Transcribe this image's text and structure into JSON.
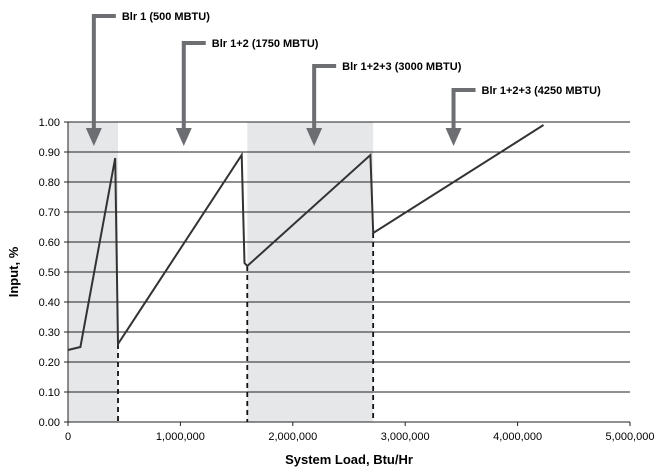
{
  "chart_data": {
    "type": "line",
    "title": "",
    "xlabel": "System Load, Btu/Hr",
    "ylabel": "Input, %",
    "xlim": [
      0,
      5000000
    ],
    "ylim": [
      0,
      1.0
    ],
    "x_ticks": [
      0,
      1000000,
      2000000,
      3000000,
      4000000,
      5000000
    ],
    "x_tick_labels": [
      "0",
      "1,000,000",
      "2,000,000",
      "3,000,000",
      "4,000,000",
      "5,000,000"
    ],
    "y_ticks": [
      0,
      0.1,
      0.2,
      0.3,
      0.4,
      0.5,
      0.6,
      0.7,
      0.8,
      0.9,
      1.0
    ],
    "y_tick_labels": [
      "0.00",
      "0.10",
      "0.20",
      "0.30",
      "0.40",
      "0.50",
      "0.60",
      "0.70",
      "0.80",
      "0.90",
      "1.00"
    ],
    "grid": "horizontal",
    "series": [
      {
        "color": "#333333",
        "x": [
          0,
          110000,
          420000,
          445000,
          1545000,
          1570000,
          1595000,
          2690000,
          2715000,
          4230000
        ],
        "y": [
          0.24,
          0.25,
          0.88,
          0.26,
          0.89,
          0.53,
          0.52,
          0.89,
          0.63,
          0.99
        ]
      }
    ],
    "shaded_regions": [
      {
        "x0": 0,
        "x1": 445000,
        "color": "#e6e7e9"
      },
      {
        "x0": 1595000,
        "x1": 2715000,
        "color": "#e6e7e9"
      }
    ],
    "dashed_verticals": [
      {
        "x": 445000,
        "y_top": 0.26
      },
      {
        "x": 1595000,
        "y_top": 0.52
      },
      {
        "x": 2715000,
        "y_top": 0.63
      }
    ],
    "annotations": [
      {
        "text": "Blr 1 (500 MBTU)",
        "arrow_x": 230000
      },
      {
        "text": "Blr 1+2 (1750 MBTU)",
        "arrow_x": 1030000
      },
      {
        "text": "Blr 1+2+3 (3000 MBTU)",
        "arrow_x": 2190000
      },
      {
        "text": "Blr 1+2+3 (4250 MBTU)",
        "arrow_x": 3430000
      }
    ]
  }
}
